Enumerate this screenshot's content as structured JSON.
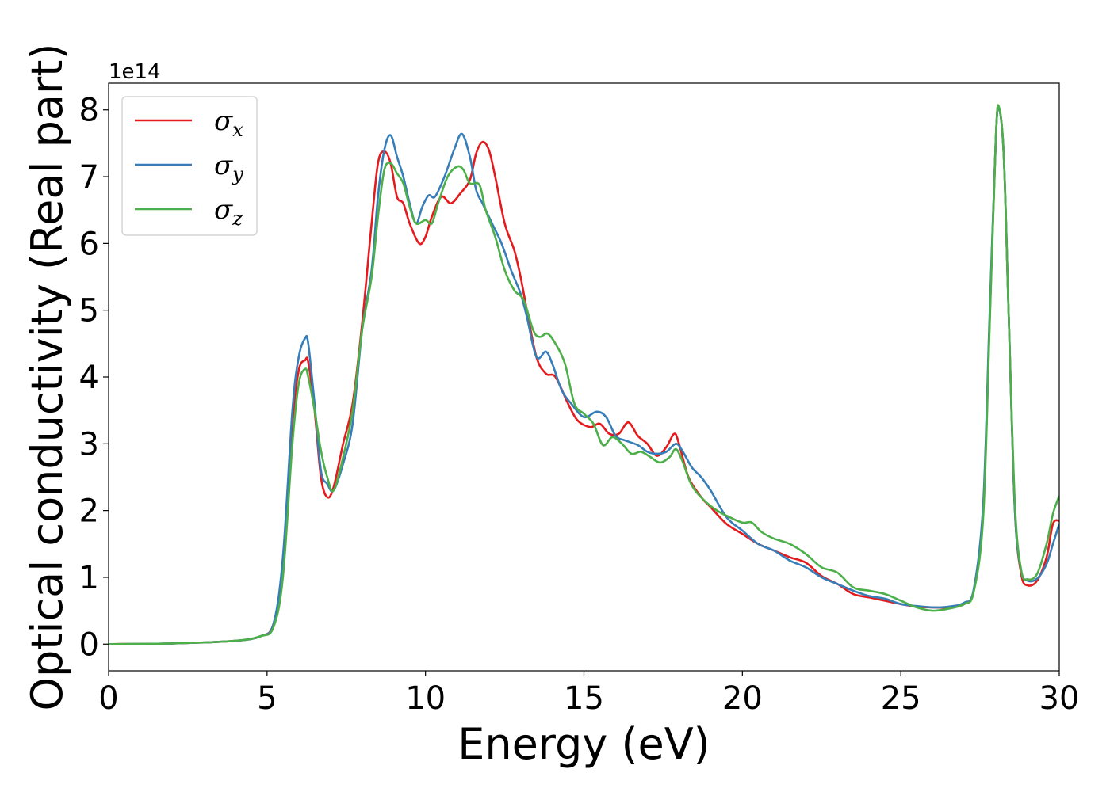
{
  "chart_data": {
    "type": "line",
    "title": "",
    "xlabel": "Energy (eV)",
    "ylabel": "Optical conductivity (Real part)",
    "y_offset_label": "1e14",
    "xlim": [
      0,
      30
    ],
    "ylim": [
      -0.4,
      8.4
    ],
    "x_ticks": [
      0,
      5,
      10,
      15,
      20,
      25,
      30
    ],
    "x_tick_labels": [
      "0",
      "5",
      "10",
      "15",
      "20",
      "25",
      "30"
    ],
    "y_ticks": [
      0,
      1,
      2,
      3,
      4,
      5,
      6,
      7,
      8
    ],
    "y_tick_labels": [
      "0",
      "1",
      "2",
      "3",
      "4",
      "5",
      "6",
      "7",
      "8"
    ],
    "grid": false,
    "legend_position": "top-left",
    "series": [
      {
        "name": "σx",
        "legend_base": "σ",
        "legend_sub": "x",
        "color": "#e41a1c",
        "points": [
          [
            0,
            0
          ],
          [
            2,
            0.01
          ],
          [
            4,
            0.05
          ],
          [
            4.8,
            0.12
          ],
          [
            5.2,
            0.3
          ],
          [
            5.5,
            1.2
          ],
          [
            5.8,
            3.3
          ],
          [
            6.0,
            4.1
          ],
          [
            6.2,
            4.25
          ],
          [
            6.3,
            4.22
          ],
          [
            6.5,
            3.5
          ],
          [
            6.7,
            2.5
          ],
          [
            6.9,
            2.2
          ],
          [
            7.1,
            2.35
          ],
          [
            7.4,
            3.0
          ],
          [
            7.7,
            3.6
          ],
          [
            8.0,
            4.8
          ],
          [
            8.3,
            6.3
          ],
          [
            8.5,
            7.2
          ],
          [
            8.7,
            7.38
          ],
          [
            8.9,
            7.2
          ],
          [
            9.1,
            6.7
          ],
          [
            9.3,
            6.6
          ],
          [
            9.5,
            6.3
          ],
          [
            9.8,
            6.0
          ],
          [
            10.0,
            6.1
          ],
          [
            10.2,
            6.4
          ],
          [
            10.5,
            6.7
          ],
          [
            10.8,
            6.6
          ],
          [
            11.1,
            6.75
          ],
          [
            11.4,
            6.95
          ],
          [
            11.6,
            7.35
          ],
          [
            11.8,
            7.52
          ],
          [
            12.0,
            7.4
          ],
          [
            12.2,
            7.0
          ],
          [
            12.5,
            6.3
          ],
          [
            12.8,
            5.9
          ],
          [
            13.0,
            5.5
          ],
          [
            13.2,
            5.0
          ],
          [
            13.5,
            4.3
          ],
          [
            13.8,
            4.05
          ],
          [
            14.1,
            4.0
          ],
          [
            14.5,
            3.6
          ],
          [
            14.8,
            3.35
          ],
          [
            15.2,
            3.25
          ],
          [
            15.5,
            3.3
          ],
          [
            15.8,
            3.15
          ],
          [
            16.1,
            3.15
          ],
          [
            16.4,
            3.32
          ],
          [
            16.7,
            3.12
          ],
          [
            17.0,
            3.0
          ],
          [
            17.3,
            2.82
          ],
          [
            17.6,
            2.95
          ],
          [
            17.85,
            3.15
          ],
          [
            18.0,
            3.0
          ],
          [
            18.3,
            2.5
          ],
          [
            18.7,
            2.2
          ],
          [
            19.0,
            2.05
          ],
          [
            19.5,
            1.8
          ],
          [
            20.0,
            1.65
          ],
          [
            20.5,
            1.5
          ],
          [
            21.0,
            1.4
          ],
          [
            21.5,
            1.3
          ],
          [
            22.0,
            1.22
          ],
          [
            22.5,
            1.02
          ],
          [
            23.0,
            0.9
          ],
          [
            23.5,
            0.75
          ],
          [
            24.0,
            0.7
          ],
          [
            24.5,
            0.65
          ],
          [
            25.0,
            0.6
          ],
          [
            25.5,
            0.56
          ],
          [
            26.0,
            0.55
          ],
          [
            26.5,
            0.55
          ],
          [
            27.0,
            0.6
          ],
          [
            27.3,
            0.8
          ],
          [
            27.6,
            2.0
          ],
          [
            27.8,
            4.8
          ],
          [
            28.0,
            7.6
          ],
          [
            28.1,
            8.02
          ],
          [
            28.25,
            7.3
          ],
          [
            28.4,
            5.0
          ],
          [
            28.6,
            2.0
          ],
          [
            28.8,
            1.05
          ],
          [
            29.0,
            0.88
          ],
          [
            29.3,
            0.95
          ],
          [
            29.6,
            1.3
          ],
          [
            29.8,
            1.8
          ],
          [
            30.0,
            1.85
          ]
        ]
      },
      {
        "name": "σy",
        "legend_base": "σ",
        "legend_sub": "y",
        "color": "#377eb8",
        "points": [
          [
            0,
            0
          ],
          [
            2,
            0.01
          ],
          [
            4,
            0.05
          ],
          [
            4.8,
            0.12
          ],
          [
            5.2,
            0.3
          ],
          [
            5.5,
            1.3
          ],
          [
            5.8,
            3.5
          ],
          [
            6.0,
            4.3
          ],
          [
            6.2,
            4.58
          ],
          [
            6.3,
            4.5
          ],
          [
            6.5,
            3.6
          ],
          [
            6.7,
            2.6
          ],
          [
            6.9,
            2.4
          ],
          [
            7.1,
            2.3
          ],
          [
            7.4,
            2.7
          ],
          [
            7.7,
            3.3
          ],
          [
            8.0,
            4.7
          ],
          [
            8.3,
            5.6
          ],
          [
            8.5,
            6.7
          ],
          [
            8.7,
            7.4
          ],
          [
            8.9,
            7.62
          ],
          [
            9.1,
            7.3
          ],
          [
            9.3,
            7.0
          ],
          [
            9.5,
            6.6
          ],
          [
            9.7,
            6.3
          ],
          [
            9.9,
            6.55
          ],
          [
            10.1,
            6.72
          ],
          [
            10.3,
            6.7
          ],
          [
            10.6,
            7.0
          ],
          [
            10.9,
            7.4
          ],
          [
            11.15,
            7.64
          ],
          [
            11.4,
            7.3
          ],
          [
            11.6,
            6.8
          ],
          [
            11.8,
            6.6
          ],
          [
            12.1,
            6.3
          ],
          [
            12.4,
            6.0
          ],
          [
            12.7,
            5.6
          ],
          [
            13.0,
            5.25
          ],
          [
            13.2,
            4.9
          ],
          [
            13.5,
            4.3
          ],
          [
            13.8,
            4.38
          ],
          [
            14.0,
            4.2
          ],
          [
            14.3,
            3.8
          ],
          [
            14.6,
            3.6
          ],
          [
            15.0,
            3.4
          ],
          [
            15.4,
            3.48
          ],
          [
            15.7,
            3.4
          ],
          [
            16.0,
            3.12
          ],
          [
            16.3,
            3.05
          ],
          [
            16.7,
            2.98
          ],
          [
            17.0,
            2.88
          ],
          [
            17.3,
            2.85
          ],
          [
            17.6,
            2.88
          ],
          [
            17.9,
            3.0
          ],
          [
            18.1,
            2.9
          ],
          [
            18.4,
            2.65
          ],
          [
            18.7,
            2.5
          ],
          [
            19.0,
            2.3
          ],
          [
            19.5,
            1.9
          ],
          [
            20.0,
            1.7
          ],
          [
            20.5,
            1.5
          ],
          [
            21.0,
            1.4
          ],
          [
            21.5,
            1.25
          ],
          [
            22.0,
            1.15
          ],
          [
            22.5,
            1.0
          ],
          [
            23.0,
            0.9
          ],
          [
            23.5,
            0.8
          ],
          [
            24.0,
            0.72
          ],
          [
            24.5,
            0.68
          ],
          [
            25.0,
            0.6
          ],
          [
            25.5,
            0.57
          ],
          [
            26.0,
            0.55
          ],
          [
            26.5,
            0.56
          ],
          [
            27.0,
            0.62
          ],
          [
            27.3,
            0.82
          ],
          [
            27.6,
            2.1
          ],
          [
            27.8,
            4.9
          ],
          [
            28.0,
            7.6
          ],
          [
            28.1,
            8.02
          ],
          [
            28.25,
            7.3
          ],
          [
            28.4,
            5.0
          ],
          [
            28.6,
            2.0
          ],
          [
            28.8,
            1.1
          ],
          [
            29.0,
            0.95
          ],
          [
            29.3,
            0.98
          ],
          [
            29.6,
            1.2
          ],
          [
            29.8,
            1.5
          ],
          [
            30.0,
            1.8
          ]
        ]
      },
      {
        "name": "σz",
        "legend_base": "σ",
        "legend_sub": "z",
        "color": "#4daf4a",
        "points": [
          [
            0,
            0
          ],
          [
            2,
            0.01
          ],
          [
            4,
            0.05
          ],
          [
            4.8,
            0.12
          ],
          [
            5.2,
            0.25
          ],
          [
            5.5,
            1.0
          ],
          [
            5.8,
            3.0
          ],
          [
            6.0,
            3.9
          ],
          [
            6.2,
            4.12
          ],
          [
            6.3,
            4.0
          ],
          [
            6.5,
            3.5
          ],
          [
            6.7,
            2.9
          ],
          [
            6.9,
            2.5
          ],
          [
            7.1,
            2.3
          ],
          [
            7.4,
            2.8
          ],
          [
            7.7,
            3.5
          ],
          [
            8.0,
            4.7
          ],
          [
            8.3,
            5.5
          ],
          [
            8.5,
            6.4
          ],
          [
            8.7,
            7.1
          ],
          [
            8.9,
            7.2
          ],
          [
            9.1,
            7.05
          ],
          [
            9.3,
            6.9
          ],
          [
            9.5,
            6.55
          ],
          [
            9.7,
            6.3
          ],
          [
            10.0,
            6.35
          ],
          [
            10.2,
            6.3
          ],
          [
            10.4,
            6.6
          ],
          [
            10.7,
            7.0
          ],
          [
            11.0,
            7.15
          ],
          [
            11.2,
            7.1
          ],
          [
            11.4,
            6.9
          ],
          [
            11.7,
            6.88
          ],
          [
            11.9,
            6.5
          ],
          [
            12.2,
            6.1
          ],
          [
            12.5,
            5.6
          ],
          [
            12.8,
            5.3
          ],
          [
            13.1,
            5.15
          ],
          [
            13.4,
            4.7
          ],
          [
            13.6,
            4.6
          ],
          [
            13.85,
            4.65
          ],
          [
            14.1,
            4.5
          ],
          [
            14.4,
            4.2
          ],
          [
            14.7,
            3.6
          ],
          [
            15.0,
            3.45
          ],
          [
            15.3,
            3.3
          ],
          [
            15.6,
            2.98
          ],
          [
            15.9,
            3.1
          ],
          [
            16.2,
            3.0
          ],
          [
            16.5,
            2.85
          ],
          [
            16.8,
            2.88
          ],
          [
            17.1,
            2.8
          ],
          [
            17.4,
            2.72
          ],
          [
            17.7,
            2.8
          ],
          [
            17.9,
            2.92
          ],
          [
            18.1,
            2.75
          ],
          [
            18.4,
            2.38
          ],
          [
            18.8,
            2.15
          ],
          [
            19.2,
            2.0
          ],
          [
            19.6,
            1.9
          ],
          [
            20.0,
            1.82
          ],
          [
            20.3,
            1.82
          ],
          [
            20.6,
            1.68
          ],
          [
            21.0,
            1.58
          ],
          [
            21.5,
            1.5
          ],
          [
            22.0,
            1.35
          ],
          [
            22.5,
            1.15
          ],
          [
            23.0,
            1.07
          ],
          [
            23.5,
            0.85
          ],
          [
            24.0,
            0.8
          ],
          [
            24.5,
            0.75
          ],
          [
            25.0,
            0.65
          ],
          [
            25.5,
            0.55
          ],
          [
            26.0,
            0.5
          ],
          [
            26.5,
            0.53
          ],
          [
            27.0,
            0.6
          ],
          [
            27.3,
            0.78
          ],
          [
            27.6,
            1.9
          ],
          [
            27.8,
            4.7
          ],
          [
            28.0,
            7.6
          ],
          [
            28.1,
            8.04
          ],
          [
            28.25,
            7.3
          ],
          [
            28.4,
            5.0
          ],
          [
            28.6,
            2.1
          ],
          [
            28.8,
            1.1
          ],
          [
            29.0,
            0.97
          ],
          [
            29.3,
            1.05
          ],
          [
            29.6,
            1.5
          ],
          [
            29.8,
            1.95
          ],
          [
            30.0,
            2.22
          ]
        ]
      }
    ]
  }
}
